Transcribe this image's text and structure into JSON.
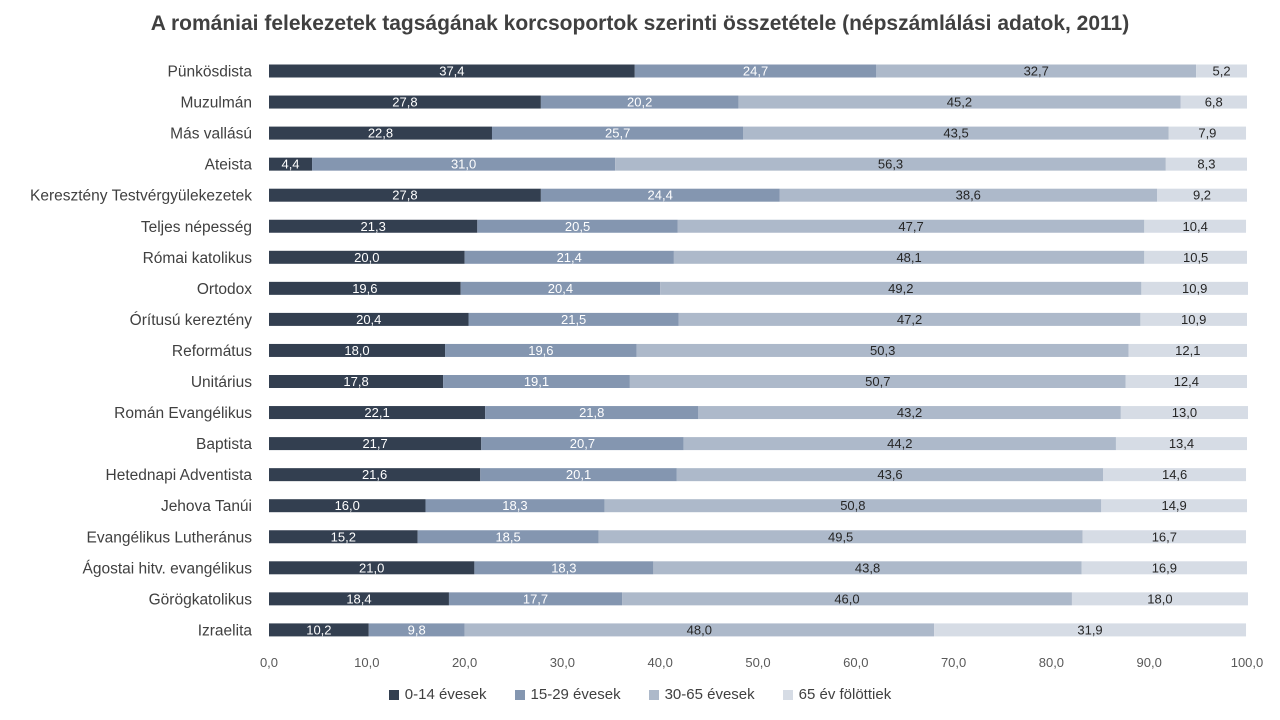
{
  "chart_data": {
    "type": "bar",
    "orientation": "horizontal",
    "stacked": true,
    "title": "A romániai felekezetek tagságának korcsoportok szerinti összetétele (népszámlálási adatok, 2011)",
    "xlabel": "",
    "ylabel": "",
    "xlim": [
      0,
      100
    ],
    "x_ticks": [
      "0,0",
      "10,0",
      "20,0",
      "30,0",
      "40,0",
      "50,0",
      "60,0",
      "70,0",
      "80,0",
      "90,0",
      "100,0"
    ],
    "grid": false,
    "legend_position": "bottom",
    "categories": [
      "Pünkösdista",
      "Muzulmán",
      "Más vallású",
      "Ateista",
      "Keresztény Testvérgyülekezetek",
      "Teljes népesség",
      "Római katolikus",
      "Ortodox",
      "Órítusú kereztény",
      "Református",
      "Unitárius",
      "Román Evangélikus",
      "Baptista",
      "Hetednapi Adventista",
      "Jehova Tanúi",
      "Evangélikus Lutheránus",
      "Ágostai hitv.  evangélikus",
      "Görögkatolikus",
      "Izraelita"
    ],
    "series": [
      {
        "name": "0-14 évesek",
        "color": "#333f50",
        "label_color": "#ffffff",
        "values": [
          37.4,
          27.8,
          22.8,
          4.4,
          27.8,
          21.3,
          20.0,
          19.6,
          20.4,
          18.0,
          17.8,
          22.1,
          21.7,
          21.6,
          16.0,
          15.2,
          21.0,
          18.4,
          10.2
        ],
        "labels": [
          "37,4",
          "27,8",
          "22,8",
          "4,4",
          "27,8",
          "21,3",
          "20,0",
          "19,6",
          "20,4",
          "18,0",
          "17,8",
          "22,1",
          "21,7",
          "21,6",
          "16,0",
          "15,2",
          "21,0",
          "18,4",
          "10,2"
        ]
      },
      {
        "name": "15-29 évesek",
        "color": "#8496b0",
        "label_color": "#ffffff",
        "values": [
          24.7,
          20.2,
          25.7,
          31.0,
          24.4,
          20.5,
          21.4,
          20.4,
          21.5,
          19.6,
          19.1,
          21.8,
          20.7,
          20.1,
          18.3,
          18.5,
          18.3,
          17.7,
          9.8
        ],
        "labels": [
          "24,7",
          "20,2",
          "25,7",
          "31,0",
          "24,4",
          "20,5",
          "21,4",
          "20,4",
          "21,5",
          "19,6",
          "19,1",
          "21,8",
          "20,7",
          "20,1",
          "18,3",
          "18,5",
          "18,3",
          "17,7",
          "9,8"
        ]
      },
      {
        "name": "30-65 évesek",
        "color": "#adb9ca",
        "label_color": "#262626",
        "values": [
          32.7,
          45.2,
          43.5,
          56.3,
          38.6,
          47.7,
          48.1,
          49.2,
          47.2,
          50.3,
          50.7,
          43.2,
          44.2,
          43.6,
          50.8,
          49.5,
          43.8,
          46.0,
          48.0
        ],
        "labels": [
          "32,7",
          "45,2",
          "43,5",
          "56,3",
          "38,6",
          "47,7",
          "48,1",
          "49,2",
          "47,2",
          "50,3",
          "50,7",
          "43,2",
          "44,2",
          "43,6",
          "50,8",
          "49,5",
          "43,8",
          "46,0",
          "48,0"
        ]
      },
      {
        "name": "65 év fölöttiek",
        "color": "#d6dce5",
        "label_color": "#262626",
        "values": [
          5.2,
          6.8,
          7.9,
          8.3,
          9.2,
          10.4,
          10.5,
          10.9,
          10.9,
          12.1,
          12.4,
          13.0,
          13.4,
          14.6,
          14.9,
          16.7,
          16.9,
          18.0,
          31.9
        ],
        "labels": [
          "5,2",
          "6,8",
          "7,9",
          "8,3",
          "9,2",
          "10,4",
          "10,5",
          "10,9",
          "10,9",
          "12,1",
          "12,4",
          "13,0",
          "13,4",
          "14,6",
          "14,9",
          "16,7",
          "16,9",
          "18,0",
          "31,9"
        ]
      }
    ]
  }
}
